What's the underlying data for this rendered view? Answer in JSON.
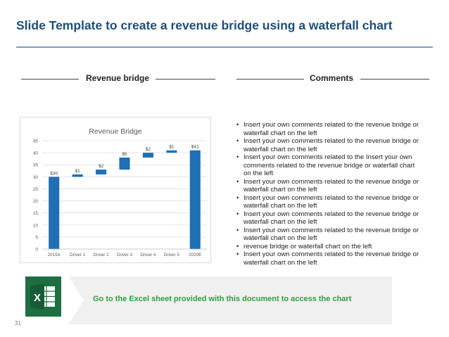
{
  "header": {
    "title": "Slide Template to create a revenue bridge using a waterfall chart"
  },
  "left_section": {
    "label": "Revenue bridge"
  },
  "right_section": {
    "label": "Comments"
  },
  "comments": [
    "Insert your own comments related to the revenue bridge or waterfall chart on the left",
    "Insert your own comments related to the revenue bridge or waterfall chart on the left",
    "Insert your own comments related to the Insert your own comments related to the revenue bridge or waterfall chart on the left",
    "Insert your own comments related to the revenue bridge or waterfall chart on the left",
    "Insert your own comments related to the revenue bridge or waterfall chart on the left",
    "Insert your own comments related to the revenue bridge or waterfall chart on the left",
    "Insert your own comments related to the revenue bridge or waterfall chart on the left",
    "revenue bridge or waterfall chart on the left",
    "Insert your own comments related to the revenue bridge or waterfall chart on the left"
  ],
  "footer": {
    "message": "Go to the Excel sheet provided with this document to access the chart",
    "page_number": "31",
    "excel_icon": "excel-icon"
  },
  "chart_data": {
    "type": "bar",
    "subtype": "waterfall",
    "title": "Revenue Bridge",
    "categories": [
      "2015A",
      "Driver 1",
      "Driver 2",
      "Driver 3",
      "Driver 4",
      "Driver 5",
      "2020E"
    ],
    "bar_bottoms": [
      0,
      30,
      31,
      33,
      38,
      40,
      0
    ],
    "bar_tops": [
      30,
      31,
      33,
      38,
      40,
      41,
      41
    ],
    "data_labels": [
      "$30",
      "$1",
      "$2",
      "$5",
      "$2",
      "$1",
      "$41"
    ],
    "ylim": [
      0,
      45
    ],
    "yticks": [
      0,
      5,
      10,
      15,
      20,
      25,
      30,
      35,
      40,
      45
    ],
    "grid": true,
    "colors": {
      "bar": "#1f6fb5",
      "grid": "#dedede"
    }
  }
}
